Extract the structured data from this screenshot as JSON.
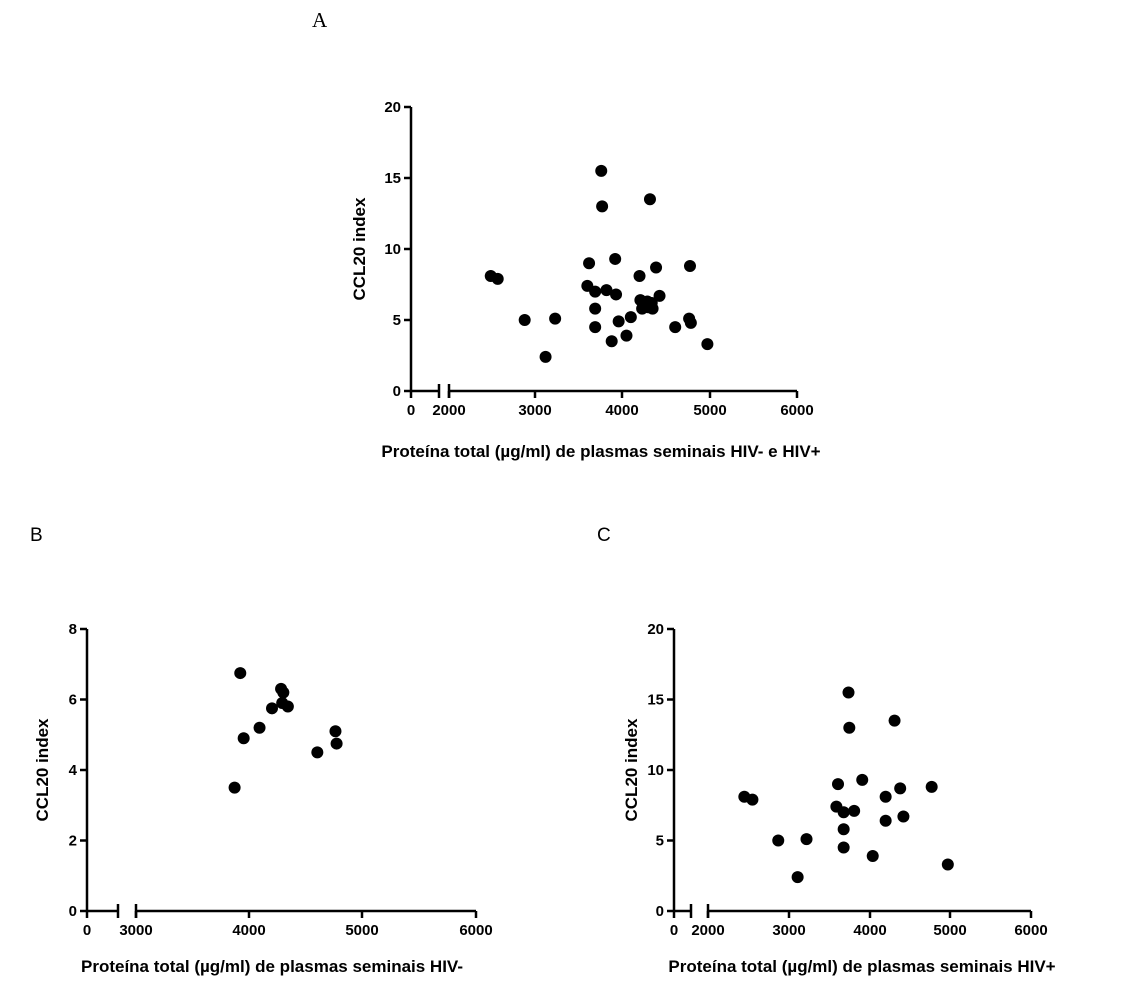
{
  "panels": [
    {
      "letter": "A"
    },
    {
      "letter": "B"
    },
    {
      "letter": "C"
    }
  ],
  "chart_data": [
    {
      "type": "scatter",
      "panel": "A",
      "title": "",
      "xlabel": "Proteína total (µg/ml) de plasmas seminais HIV- e HIV+",
      "ylabel": "CCL20 index",
      "x_ticks": [
        "0",
        "2000",
        "3000",
        "4000",
        "5000",
        "6000"
      ],
      "y_ticks": [
        "0",
        "5",
        "10",
        "15",
        "20"
      ],
      "xlim": [
        0,
        6000
      ],
      "x_axis_break": true,
      "ylim": [
        0,
        20
      ],
      "grid": false,
      "series": [
        {
          "points": [
            [
              2480,
              8.1
            ],
            [
              2560,
              7.9
            ],
            [
              2870,
              5.0
            ],
            [
              3110,
              2.4
            ],
            [
              3220,
              5.1
            ],
            [
              3590,
              7.4
            ],
            [
              3610,
              9.0
            ],
            [
              3680,
              7.0
            ],
            [
              3680,
              5.8
            ],
            [
              3680,
              4.5
            ],
            [
              3750,
              15.5
            ],
            [
              3760,
              13.0
            ],
            [
              3810,
              7.1
            ],
            [
              3870,
              3.5
            ],
            [
              3910,
              9.3
            ],
            [
              3920,
              6.8
            ],
            [
              3950,
              4.9
            ],
            [
              4040,
              3.9
            ],
            [
              4090,
              5.2
            ],
            [
              4190,
              8.1
            ],
            [
              4200,
              6.4
            ],
            [
              4220,
              5.8
            ],
            [
              4280,
              6.3
            ],
            [
              4290,
              5.9
            ],
            [
              4310,
              13.5
            ],
            [
              4330,
              6.2
            ],
            [
              4340,
              5.8
            ],
            [
              4380,
              8.7
            ],
            [
              4420,
              6.7
            ],
            [
              4600,
              4.5
            ],
            [
              4760,
              5.1
            ],
            [
              4770,
              8.8
            ],
            [
              4780,
              4.8
            ],
            [
              4970,
              3.3
            ]
          ]
        }
      ]
    },
    {
      "type": "scatter",
      "panel": "B",
      "title": "",
      "xlabel": "Proteína total (µg/ml) de plasmas seminais HIV-",
      "ylabel": "CCL20 index",
      "x_ticks": [
        "0",
        "3000",
        "4000",
        "5000",
        "6000"
      ],
      "y_ticks": [
        "0",
        "2",
        "4",
        "6",
        "8"
      ],
      "xlim": [
        0,
        6000
      ],
      "x_axis_break": true,
      "ylim": [
        0,
        8
      ],
      "grid": false,
      "series": [
        {
          "points": [
            [
              3870,
              3.5
            ],
            [
              3920,
              6.75
            ],
            [
              3950,
              4.9
            ],
            [
              4090,
              5.2
            ],
            [
              4200,
              5.75
            ],
            [
              4280,
              6.3
            ],
            [
              4290,
              5.9
            ],
            [
              4300,
              6.2
            ],
            [
              4340,
              5.8
            ],
            [
              4600,
              4.5
            ],
            [
              4760,
              5.1
            ],
            [
              4770,
              4.75
            ]
          ]
        }
      ]
    },
    {
      "type": "scatter",
      "panel": "C",
      "title": "",
      "xlabel": "Proteína total (µg/ml) de plasmas seminais HIV+",
      "ylabel": "CCL20 index",
      "x_ticks": [
        "0",
        "2000",
        "3000",
        "4000",
        "5000",
        "6000"
      ],
      "y_ticks": [
        "0",
        "5",
        "10",
        "15",
        "20"
      ],
      "xlim": [
        0,
        6000
      ],
      "x_axis_break": true,
      "ylim": [
        0,
        20
      ],
      "grid": false,
      "series": [
        {
          "points": [
            [
              2450,
              8.1
            ],
            [
              2550,
              7.9
            ],
            [
              2870,
              5.0
            ],
            [
              3110,
              2.4
            ],
            [
              3220,
              5.1
            ],
            [
              3590,
              7.4
            ],
            [
              3610,
              9.0
            ],
            [
              3680,
              7.0
            ],
            [
              3680,
              5.8
            ],
            [
              3680,
              4.5
            ],
            [
              3740,
              15.5
            ],
            [
              3750,
              13.0
            ],
            [
              3810,
              7.1
            ],
            [
              3910,
              9.3
            ],
            [
              4040,
              3.9
            ],
            [
              4200,
              8.1
            ],
            [
              4200,
              6.4
            ],
            [
              4310,
              13.5
            ],
            [
              4380,
              8.7
            ],
            [
              4420,
              6.7
            ],
            [
              4770,
              8.8
            ],
            [
              4970,
              3.3
            ]
          ]
        }
      ]
    }
  ]
}
